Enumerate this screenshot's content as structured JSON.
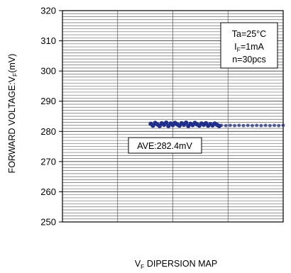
{
  "chart_data": {
    "type": "scatter",
    "ylabel": {
      "main": "FORWARD VOLTAGE:V",
      "sub": "F",
      "suffix": "(mV)"
    },
    "xlabel": {
      "main": "V",
      "sub": "F",
      "suffix": " DIPERSION MAP"
    },
    "ylim": [
      250,
      320
    ],
    "yticks": [
      250,
      260,
      270,
      280,
      290,
      300,
      310,
      320
    ],
    "xlim": [
      0,
      1
    ],
    "minor_gridline_step": 1,
    "conditions": {
      "line1": "Ta=25°C",
      "line2": {
        "main": "I",
        "sub": "F",
        "suffix": "=1mA"
      },
      "line3": "n=30pcs"
    },
    "annotation": "AVE:282.4mV",
    "point_color": "#1f2f8f",
    "points_dark": [
      {
        "x": 0.4,
        "y": 282.5
      },
      {
        "x": 0.41,
        "y": 281.9
      },
      {
        "x": 0.42,
        "y": 282.8
      },
      {
        "x": 0.43,
        "y": 282.3
      },
      {
        "x": 0.44,
        "y": 281.8
      },
      {
        "x": 0.45,
        "y": 282.7
      },
      {
        "x": 0.46,
        "y": 282.2
      },
      {
        "x": 0.47,
        "y": 282.9
      },
      {
        "x": 0.48,
        "y": 281.8
      },
      {
        "x": 0.49,
        "y": 282.6
      },
      {
        "x": 0.5,
        "y": 282.1
      },
      {
        "x": 0.51,
        "y": 282.8
      },
      {
        "x": 0.52,
        "y": 282.3
      },
      {
        "x": 0.53,
        "y": 281.9
      },
      {
        "x": 0.54,
        "y": 282.7
      },
      {
        "x": 0.55,
        "y": 282.2
      },
      {
        "x": 0.56,
        "y": 282.9
      },
      {
        "x": 0.57,
        "y": 281.8
      },
      {
        "x": 0.58,
        "y": 282.5
      },
      {
        "x": 0.59,
        "y": 282.1
      },
      {
        "x": 0.6,
        "y": 282.8
      },
      {
        "x": 0.61,
        "y": 282.3
      },
      {
        "x": 0.62,
        "y": 281.9
      },
      {
        "x": 0.63,
        "y": 282.6
      },
      {
        "x": 0.64,
        "y": 282.2
      },
      {
        "x": 0.65,
        "y": 282.7
      },
      {
        "x": 0.66,
        "y": 281.9
      },
      {
        "x": 0.67,
        "y": 282.4
      },
      {
        "x": 0.68,
        "y": 282.0
      },
      {
        "x": 0.69,
        "y": 282.6
      },
      {
        "x": 0.7,
        "y": 282.2
      },
      {
        "x": 0.71,
        "y": 281.8
      }
    ],
    "points_light": [
      {
        "x": 0.72,
        "y": 282.0
      },
      {
        "x": 0.74,
        "y": 281.9
      },
      {
        "x": 0.76,
        "y": 282.0
      },
      {
        "x": 0.78,
        "y": 281.9
      },
      {
        "x": 0.8,
        "y": 282.0
      },
      {
        "x": 0.82,
        "y": 281.9
      },
      {
        "x": 0.84,
        "y": 282.0
      },
      {
        "x": 0.86,
        "y": 281.9
      },
      {
        "x": 0.88,
        "y": 282.0
      },
      {
        "x": 0.9,
        "y": 281.9
      },
      {
        "x": 0.92,
        "y": 282.0
      },
      {
        "x": 0.94,
        "y": 281.9
      },
      {
        "x": 0.96,
        "y": 282.0
      },
      {
        "x": 0.98,
        "y": 281.9
      },
      {
        "x": 1.0,
        "y": 282.0
      }
    ]
  }
}
